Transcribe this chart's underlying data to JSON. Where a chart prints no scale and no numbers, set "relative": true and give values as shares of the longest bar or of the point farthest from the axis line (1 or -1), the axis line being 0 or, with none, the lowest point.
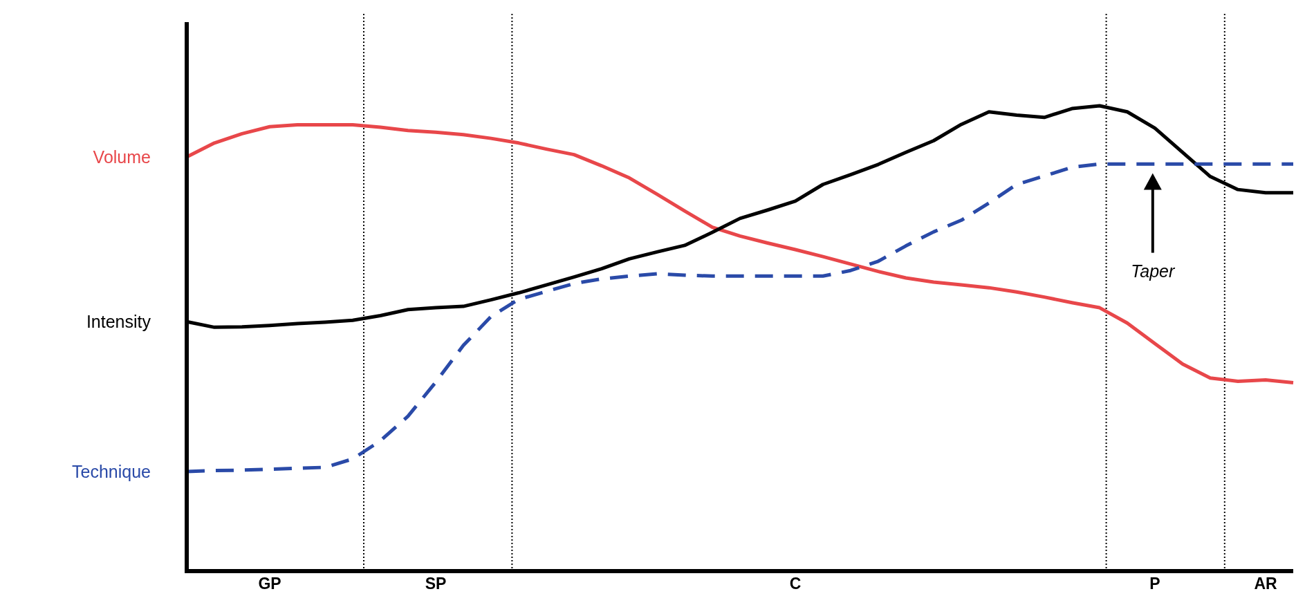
{
  "chart_data": {
    "type": "line",
    "relative": true,
    "categories": [
      null,
      null,
      null,
      "GP",
      null,
      null,
      null,
      null,
      null,
      "SP",
      null,
      null,
      null,
      null,
      null,
      null,
      null,
      null,
      null,
      null,
      null,
      null,
      "C",
      null,
      null,
      null,
      null,
      null,
      null,
      null,
      null,
      null,
      null,
      null,
      null,
      "P",
      null,
      null,
      null,
      "AR",
      null
    ],
    "series": [
      {
        "name": "Volume",
        "color": "#e8474a",
        "line_style": "solid",
        "values": [
          0.89,
          0.92,
          0.94,
          0.955,
          0.959,
          0.959,
          0.959,
          0.954,
          0.947,
          0.943,
          0.938,
          0.93,
          0.92,
          0.907,
          0.895,
          0.871,
          0.845,
          0.81,
          0.774,
          0.739,
          0.72,
          0.705,
          0.691,
          0.676,
          0.66,
          0.644,
          0.63,
          0.621,
          0.615,
          0.609,
          0.6,
          0.589,
          0.577,
          0.566,
          0.533,
          0.489,
          0.445,
          0.415,
          0.408,
          0.411,
          0.405
        ]
      },
      {
        "name": "Intensity",
        "color": "#000000",
        "line_style": "solid",
        "values": [
          0.536,
          0.524,
          0.525,
          0.528,
          0.532,
          0.535,
          0.539,
          0.549,
          0.562,
          0.566,
          0.569,
          0.583,
          0.598,
          0.615,
          0.632,
          0.65,
          0.671,
          0.686,
          0.7,
          0.728,
          0.758,
          0.776,
          0.795,
          0.831,
          0.852,
          0.874,
          0.9,
          0.925,
          0.96,
          0.987,
          0.98,
          0.975,
          0.994,
          1.0,
          0.987,
          0.952,
          0.9,
          0.848,
          0.82,
          0.813,
          0.813
        ]
      },
      {
        "name": "Technique",
        "color": "#2a4aa8",
        "line_style": "dashed",
        "values": [
          0.214,
          0.216,
          0.217,
          0.219,
          0.221,
          0.223,
          0.241,
          0.28,
          0.333,
          0.406,
          0.485,
          0.547,
          0.584,
          0.601,
          0.618,
          0.628,
          0.634,
          0.639,
          0.636,
          0.634,
          0.634,
          0.634,
          0.634,
          0.634,
          0.646,
          0.666,
          0.699,
          0.729,
          0.754,
          0.791,
          0.831,
          0.849,
          0.868,
          0.875,
          0.875,
          0.875,
          0.875,
          0.875,
          0.875,
          0.875,
          0.875
        ]
      }
    ],
    "annotations": [
      "Taper"
    ]
  }
}
